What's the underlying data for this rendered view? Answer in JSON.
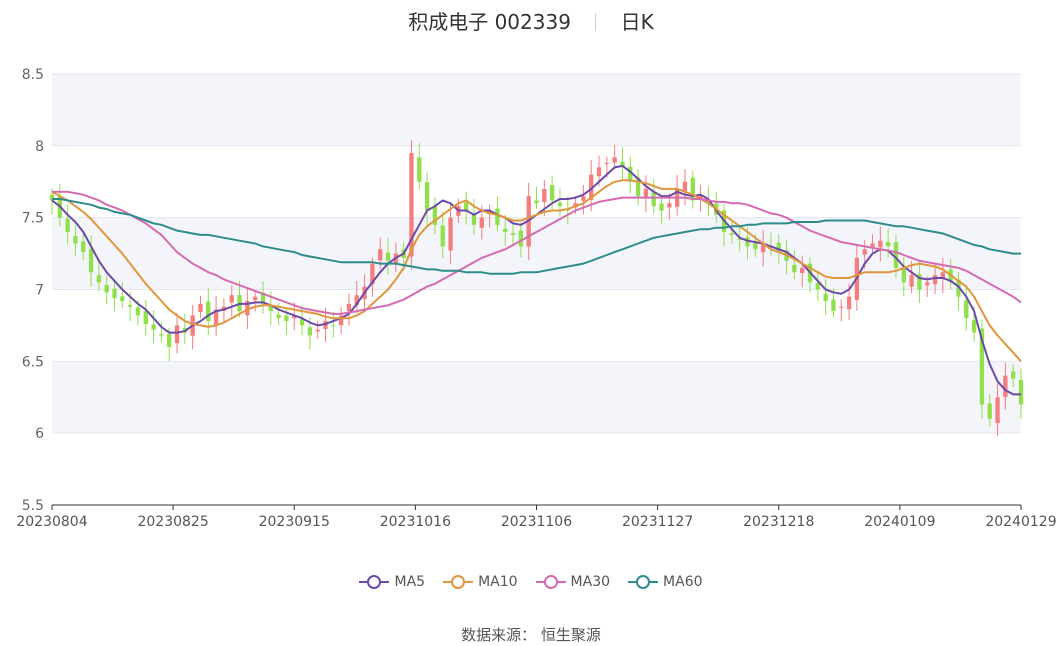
{
  "header": {
    "stock_name": "积成电子",
    "stock_code": "002339",
    "period": "日K"
  },
  "source": {
    "label": "数据来源：",
    "value": "恒生聚源"
  },
  "colors": {
    "up": "#f47d7d",
    "down": "#8fe04a",
    "ma5": "#6c4aa8",
    "ma10": "#e0963c",
    "ma30": "#d46bb0",
    "ma60": "#2f8c8c",
    "band": "#f4f5fa"
  },
  "chart_data": {
    "type": "candlestick",
    "x_axis_labels": [
      "20230804",
      "20230825",
      "20230915",
      "20231016",
      "20231106",
      "20231127",
      "20231218",
      "20240109",
      "20240129"
    ],
    "y_ticks": [
      "5.5",
      "6",
      "6.5",
      "7",
      "7.5",
      "8",
      "8.5"
    ],
    "ylim": [
      5.5,
      8.5
    ],
    "legend": [
      {
        "name": "MA5",
        "color": "#6c4aa8"
      },
      {
        "name": "MA10",
        "color": "#e0963c"
      },
      {
        "name": "MA30",
        "color": "#d46bb0"
      },
      {
        "name": "MA60",
        "color": "#2f8c8c"
      }
    ],
    "closes": [
      7.62,
      7.5,
      7.4,
      7.32,
      7.26,
      7.12,
      7.05,
      6.98,
      6.94,
      6.92,
      6.88,
      6.82,
      6.76,
      6.72,
      6.68,
      6.6,
      6.75,
      6.7,
      6.82,
      6.9,
      6.78,
      6.86,
      6.88,
      6.96,
      6.85,
      6.92,
      6.95,
      6.9,
      6.85,
      6.8,
      6.78,
      6.82,
      6.75,
      6.68,
      6.72,
      6.78,
      6.75,
      6.82,
      6.9,
      6.96,
      7.02,
      7.18,
      7.28,
      7.2,
      7.25,
      7.22,
      7.95,
      7.75,
      7.55,
      7.45,
      7.3,
      7.5,
      7.58,
      7.55,
      7.45,
      7.5,
      7.55,
      7.45,
      7.4,
      7.38,
      7.3,
      7.65,
      7.6,
      7.7,
      7.62,
      7.58,
      7.55,
      7.6,
      7.65,
      7.8,
      7.85,
      7.88,
      7.92,
      7.85,
      7.75,
      7.65,
      7.7,
      7.58,
      7.55,
      7.6,
      7.7,
      7.75,
      7.62,
      7.65,
      7.6,
      7.52,
      7.4,
      7.38,
      7.35,
      7.3,
      7.28,
      7.32,
      7.3,
      7.26,
      7.2,
      7.12,
      7.15,
      7.05,
      7.0,
      6.92,
      6.85,
      6.88,
      6.95,
      7.22,
      7.28,
      7.32,
      7.34,
      7.3,
      7.15,
      7.05,
      7.1,
      7.0,
      7.05,
      7.1,
      7.12,
      7.05,
      6.95,
      6.8,
      6.7,
      6.2,
      6.1,
      6.25,
      6.4,
      6.38,
      6.2
    ],
    "ma5": [
      7.62,
      7.58,
      7.52,
      7.47,
      7.4,
      7.3,
      7.2,
      7.12,
      7.06,
      7.0,
      6.95,
      6.9,
      6.86,
      6.8,
      6.74,
      6.7,
      6.7,
      6.71,
      6.75,
      6.78,
      6.82,
      6.85,
      6.86,
      6.88,
      6.9,
      6.9,
      6.91,
      6.91,
      6.89,
      6.86,
      6.84,
      6.82,
      6.8,
      6.77,
      6.75,
      6.76,
      6.78,
      6.8,
      6.83,
      6.9,
      6.98,
      7.05,
      7.12,
      7.18,
      7.22,
      7.25,
      7.35,
      7.45,
      7.55,
      7.58,
      7.62,
      7.6,
      7.55,
      7.55,
      7.52,
      7.55,
      7.55,
      7.52,
      7.5,
      7.46,
      7.45,
      7.48,
      7.52,
      7.56,
      7.6,
      7.63,
      7.63,
      7.64,
      7.66,
      7.7,
      7.75,
      7.8,
      7.85,
      7.86,
      7.82,
      7.77,
      7.72,
      7.68,
      7.65,
      7.65,
      7.68,
      7.66,
      7.65,
      7.66,
      7.63,
      7.55,
      7.48,
      7.42,
      7.36,
      7.34,
      7.33,
      7.32,
      7.3,
      7.28,
      7.26,
      7.22,
      7.18,
      7.12,
      7.06,
      7.0,
      6.98,
      6.97,
      7.0,
      7.08,
      7.18,
      7.25,
      7.28,
      7.27,
      7.22,
      7.16,
      7.12,
      7.08,
      7.07,
      7.08,
      7.08,
      7.06,
      7.02,
      6.95,
      6.85,
      6.65,
      6.48,
      6.36,
      6.3,
      6.27,
      6.27
    ],
    "ma10": [
      7.68,
      7.65,
      7.62,
      7.58,
      7.54,
      7.49,
      7.43,
      7.37,
      7.31,
      7.25,
      7.18,
      7.11,
      7.04,
      6.98,
      6.92,
      6.86,
      6.82,
      6.78,
      6.76,
      6.75,
      6.74,
      6.75,
      6.77,
      6.8,
      6.83,
      6.86,
      6.88,
      6.89,
      6.89,
      6.88,
      6.87,
      6.86,
      6.85,
      6.84,
      6.83,
      6.81,
      6.8,
      6.8,
      6.8,
      6.82,
      6.85,
      6.9,
      6.95,
      7.0,
      7.07,
      7.15,
      7.28,
      7.38,
      7.44,
      7.48,
      7.52,
      7.56,
      7.6,
      7.62,
      7.58,
      7.55,
      7.53,
      7.52,
      7.5,
      7.48,
      7.48,
      7.5,
      7.52,
      7.54,
      7.55,
      7.55,
      7.56,
      7.58,
      7.6,
      7.64,
      7.68,
      7.72,
      7.75,
      7.76,
      7.76,
      7.75,
      7.74,
      7.72,
      7.7,
      7.7,
      7.7,
      7.68,
      7.66,
      7.63,
      7.6,
      7.56,
      7.52,
      7.48,
      7.44,
      7.4,
      7.36,
      7.32,
      7.28,
      7.26,
      7.24,
      7.21,
      7.18,
      7.15,
      7.12,
      7.09,
      7.08,
      7.08,
      7.08,
      7.1,
      7.12,
      7.12,
      7.12,
      7.12,
      7.13,
      7.15,
      7.17,
      7.18,
      7.17,
      7.16,
      7.14,
      7.1,
      7.06,
      7.02,
      6.95,
      6.85,
      6.75,
      6.68,
      6.62,
      6.56,
      6.5
    ],
    "ma30": [
      7.68,
      7.68,
      7.68,
      7.67,
      7.66,
      7.64,
      7.62,
      7.59,
      7.57,
      7.55,
      7.52,
      7.49,
      7.46,
      7.42,
      7.38,
      7.32,
      7.26,
      7.22,
      7.18,
      7.15,
      7.12,
      7.1,
      7.07,
      7.05,
      7.03,
      7.01,
      6.99,
      6.97,
      6.95,
      6.93,
      6.91,
      6.89,
      6.87,
      6.86,
      6.85,
      6.84,
      6.83,
      6.83,
      6.84,
      6.85,
      6.86,
      6.87,
      6.88,
      6.89,
      6.91,
      6.93,
      6.96,
      6.99,
      7.02,
      7.04,
      7.07,
      7.1,
      7.13,
      7.16,
      7.19,
      7.22,
      7.24,
      7.26,
      7.28,
      7.31,
      7.34,
      7.37,
      7.4,
      7.43,
      7.46,
      7.49,
      7.52,
      7.55,
      7.57,
      7.59,
      7.61,
      7.62,
      7.63,
      7.64,
      7.64,
      7.64,
      7.64,
      7.64,
      7.64,
      7.64,
      7.64,
      7.64,
      7.63,
      7.63,
      7.62,
      7.61,
      7.61,
      7.6,
      7.6,
      7.59,
      7.57,
      7.55,
      7.53,
      7.52,
      7.5,
      7.47,
      7.44,
      7.41,
      7.39,
      7.37,
      7.35,
      7.33,
      7.32,
      7.31,
      7.3,
      7.29,
      7.28,
      7.27,
      7.26,
      7.24,
      7.22,
      7.2,
      7.19,
      7.18,
      7.17,
      7.16,
      7.15,
      7.13,
      7.1,
      7.07,
      7.04,
      7.01,
      6.98,
      6.95,
      6.91
    ],
    "ma60": [
      7.63,
      7.63,
      7.62,
      7.61,
      7.6,
      7.59,
      7.57,
      7.56,
      7.54,
      7.53,
      7.52,
      7.5,
      7.48,
      7.46,
      7.45,
      7.43,
      7.41,
      7.4,
      7.39,
      7.38,
      7.38,
      7.37,
      7.36,
      7.35,
      7.34,
      7.33,
      7.32,
      7.3,
      7.29,
      7.28,
      7.27,
      7.26,
      7.24,
      7.23,
      7.22,
      7.21,
      7.2,
      7.19,
      7.19,
      7.19,
      7.19,
      7.19,
      7.18,
      7.18,
      7.18,
      7.17,
      7.16,
      7.15,
      7.14,
      7.14,
      7.13,
      7.13,
      7.13,
      7.12,
      7.12,
      7.12,
      7.11,
      7.11,
      7.11,
      7.11,
      7.12,
      7.12,
      7.12,
      7.13,
      7.14,
      7.15,
      7.16,
      7.17,
      7.18,
      7.2,
      7.22,
      7.24,
      7.26,
      7.28,
      7.3,
      7.32,
      7.34,
      7.36,
      7.37,
      7.38,
      7.39,
      7.4,
      7.41,
      7.42,
      7.42,
      7.43,
      7.43,
      7.44,
      7.44,
      7.45,
      7.45,
      7.46,
      7.46,
      7.46,
      7.46,
      7.47,
      7.47,
      7.47,
      7.47,
      7.48,
      7.48,
      7.48,
      7.48,
      7.48,
      7.48,
      7.47,
      7.46,
      7.45,
      7.44,
      7.44,
      7.43,
      7.42,
      7.41,
      7.4,
      7.39,
      7.37,
      7.35,
      7.33,
      7.31,
      7.3,
      7.28,
      7.27,
      7.26,
      7.25,
      7.25
    ]
  }
}
